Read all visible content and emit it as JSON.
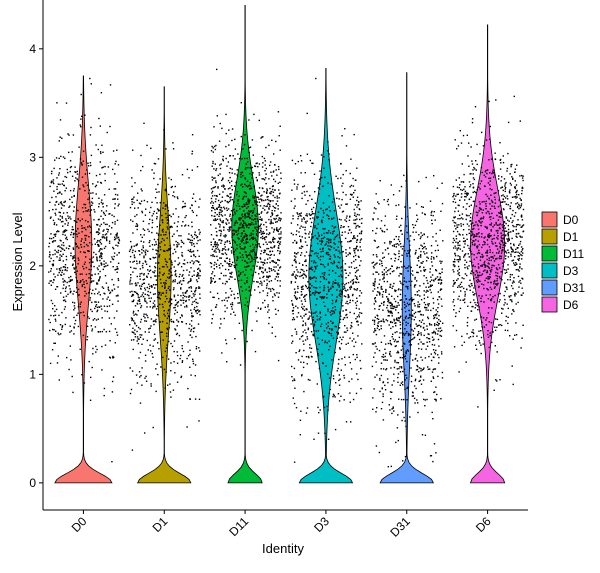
{
  "chart_data": {
    "type": "violin",
    "title": "",
    "xlabel": "Identity",
    "ylabel": "Expression Level",
    "ylim": [
      -0.25,
      4.45
    ],
    "y_ticks": [
      0,
      1,
      2,
      3,
      4
    ],
    "categories": [
      "D0",
      "D1",
      "D11",
      "D3",
      "D31",
      "D6"
    ],
    "legend_position": "right",
    "grid": false,
    "series": [
      {
        "name": "D0",
        "color": "#F8766D",
        "max": 3.75,
        "zero_fraction": 0.35,
        "median": 2.2,
        "spread": 0.55,
        "zero_width": 0.75,
        "body_width": 0.22
      },
      {
        "name": "D1",
        "color": "#B79F00",
        "max": 3.65,
        "zero_fraction": 0.3,
        "median": 1.9,
        "spread": 0.55,
        "zero_width": 0.7,
        "body_width": 0.18
      },
      {
        "name": "D11",
        "color": "#00BA38",
        "max": 4.4,
        "zero_fraction": 0.15,
        "median": 2.35,
        "spread": 0.45,
        "zero_width": 0.45,
        "body_width": 0.35
      },
      {
        "name": "D3",
        "color": "#00BFC4",
        "max": 3.82,
        "zero_fraction": 0.25,
        "median": 1.9,
        "spread": 0.6,
        "zero_width": 0.7,
        "body_width": 0.45
      },
      {
        "name": "D31",
        "color": "#619CFF",
        "max": 3.78,
        "zero_fraction": 0.3,
        "median": 1.6,
        "spread": 0.55,
        "zero_width": 0.7,
        "body_width": 0.12
      },
      {
        "name": "D6",
        "color": "#F564E3",
        "max": 4.22,
        "zero_fraction": 0.18,
        "median": 2.2,
        "spread": 0.5,
        "zero_width": 0.45,
        "body_width": 0.45
      }
    ]
  }
}
